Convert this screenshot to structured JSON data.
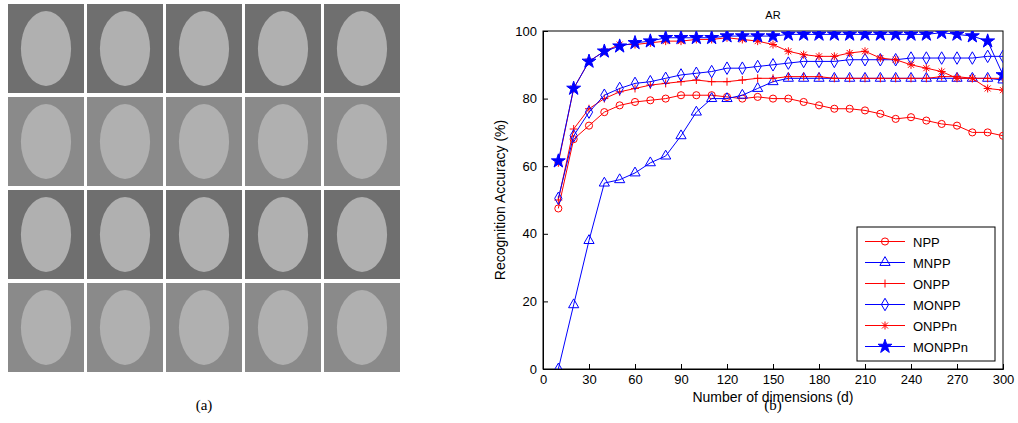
{
  "chart_data": {
    "type": "line",
    "title": "AR",
    "x_label": "Number of dimensions (d)",
    "y_label": "Recognition Accuracy (%)",
    "x": [
      10,
      20,
      30,
      40,
      50,
      60,
      70,
      80,
      90,
      100,
      110,
      120,
      130,
      140,
      150,
      160,
      170,
      180,
      190,
      200,
      210,
      220,
      230,
      240,
      250,
      260,
      270,
      280,
      290,
      300
    ],
    "xlim": [
      0,
      300
    ],
    "xticks": [
      0,
      30,
      60,
      90,
      120,
      150,
      180,
      210,
      240,
      270,
      300
    ],
    "ylim": [
      0,
      100
    ],
    "yticks": [
      0,
      20,
      40,
      60,
      80,
      100
    ],
    "grid": false,
    "legend": "lower right",
    "series": [
      {
        "name": "NPP",
        "color": "#ff0000",
        "marker": "circle",
        "line_style": "solid",
        "values": [
          47.5,
          68,
          72,
          76,
          78,
          79,
          79.5,
          80,
          81,
          81,
          81,
          80.5,
          80,
          80.5,
          80,
          80,
          79,
          78,
          77,
          77,
          76.5,
          75.5,
          74,
          74.5,
          73.5,
          72.5,
          72,
          70,
          70,
          69
        ]
      },
      {
        "name": "MNPP",
        "color": "#0000ff",
        "marker": "triangle",
        "line_style": "solid",
        "values": [
          0,
          19,
          38,
          55,
          56,
          58,
          61,
          63,
          69,
          76,
          80,
          80,
          81,
          83,
          85,
          86,
          86,
          86,
          86,
          86,
          86,
          86,
          86,
          86,
          86,
          86,
          86,
          86,
          86,
          85.5
        ]
      },
      {
        "name": "ONPP",
        "color": "#ff0000",
        "marker": "plus",
        "line_style": "solid",
        "values": [
          50,
          71,
          77,
          80,
          82,
          83,
          84,
          84.5,
          85,
          85.5,
          85,
          85,
          85.5,
          86,
          86,
          86.5,
          86.5,
          86.5,
          86,
          86,
          86,
          86,
          86,
          86,
          86,
          86.5,
          86.5,
          86,
          86,
          86
        ]
      },
      {
        "name": "MONPP",
        "color": "#0000ff",
        "marker": "diamond",
        "line_style": "solid",
        "values": [
          50.5,
          69,
          76,
          81,
          83,
          84.5,
          85,
          86,
          87,
          87.5,
          88,
          89,
          89,
          89.5,
          90,
          90.5,
          91,
          91,
          91,
          91.5,
          91.5,
          91.5,
          91.5,
          92,
          92,
          92,
          92,
          92,
          92.5,
          92.5
        ]
      },
      {
        "name": "ONPPn",
        "color": "#ff0000",
        "marker": "asterisk",
        "line_style": "solid",
        "values": [
          61,
          83,
          91,
          94,
          96,
          96,
          96.5,
          97,
          97,
          97.5,
          97.5,
          98,
          97.5,
          97,
          96,
          94,
          93,
          92.5,
          92.5,
          93.5,
          94,
          92,
          91.5,
          90,
          89,
          88,
          86,
          86,
          83,
          82.5
        ]
      },
      {
        "name": "MONPPn",
        "color": "#0000ff",
        "marker": "star",
        "line_style": "solid",
        "values": [
          61.5,
          83,
          91,
          94,
          95.5,
          96.5,
          97,
          98,
          98,
          98,
          98,
          98.5,
          98.5,
          98.5,
          98.5,
          99,
          99,
          99,
          99,
          99,
          99,
          99,
          99,
          99,
          99,
          99.5,
          99,
          98.5,
          97,
          87
        ]
      }
    ]
  },
  "captions": [
    "(a)",
    "(b)"
  ]
}
